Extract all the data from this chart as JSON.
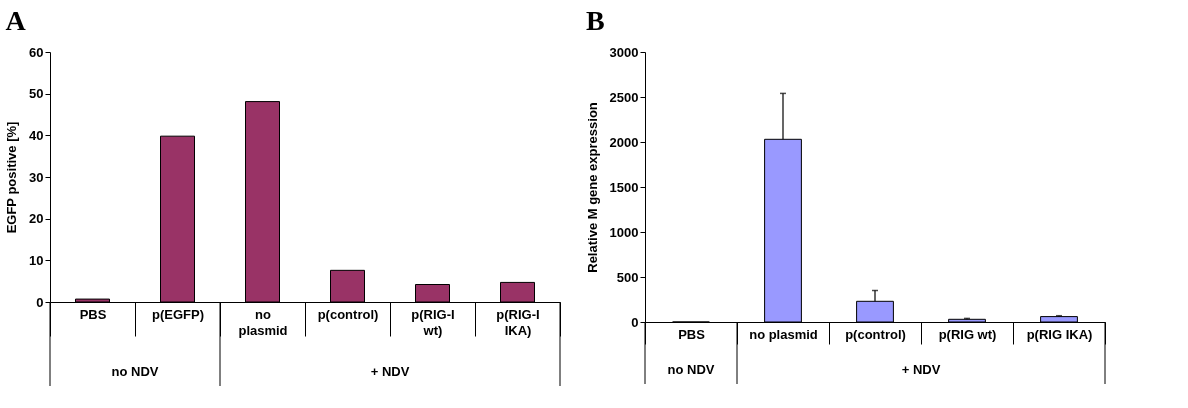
{
  "chart_data": [
    {
      "type": "bar",
      "title": "A",
      "ylabel": "EGFP positive [%]",
      "categories": [
        "PBS",
        "p(EGFP)",
        "no plasmid",
        "p(control)",
        "p(RIG-I wt)",
        "p(RIG-I IKA)"
      ],
      "values": [
        0.7,
        39.8,
        48.1,
        7.6,
        4.2,
        4.7
      ],
      "color": "#993366",
      "ylim": [
        0,
        60
      ],
      "yticks": [
        0,
        10,
        20,
        30,
        40,
        50,
        60
      ],
      "annotations": [
        "no NDV",
        "+ NDV"
      ]
    },
    {
      "type": "bar",
      "title": "B",
      "ylabel": "Relative M gene expression",
      "categories": [
        "PBS",
        "no plasmid",
        "p(control)",
        "p(RIG wt)",
        "p(RIG IKA)"
      ],
      "values": [
        0,
        2030,
        230,
        30,
        60
      ],
      "color": "#9999ff",
      "ylim": [
        0,
        3000
      ],
      "yticks": [
        0,
        500,
        1000,
        1500,
        2000,
        2500,
        3000
      ],
      "errors": [
        null,
        [
          2030,
          2540
        ],
        [
          230,
          350
        ],
        [
          30,
          40
        ],
        [
          60,
          70
        ]
      ],
      "annotations": [
        "no NDV",
        "+ NDV"
      ]
    }
  ]
}
